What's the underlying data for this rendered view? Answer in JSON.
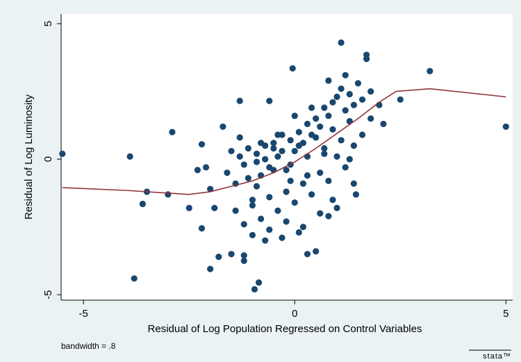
{
  "chart_data": {
    "type": "scatter",
    "ylabel": "Residual of Log Luminosity",
    "xlabel": "Residual of Log Population Regressed on Control Variables",
    "note": "bandwidth = .8",
    "logo": "stata™",
    "xlim": [
      -5.53,
      5.16
    ],
    "ylim": [
      -5.2,
      5.36
    ],
    "xticks": [
      -5,
      0,
      5
    ],
    "yticks": [
      -5,
      0,
      5
    ],
    "points": {
      "color": "#1a476f",
      "x": [
        -5.5,
        -3.9,
        -3.8,
        -3.5,
        -3.6,
        -3.0,
        -2.9,
        -2.5,
        -2.2,
        -2.2,
        -2.0,
        -1.8,
        -1.5,
        -1.7,
        -1.3,
        -0.95,
        -0.85,
        3.2,
        5.0,
        1.1,
        1.7,
        2.5,
        -0.6,
        -0.05,
        1.45,
        0.8,
        0.3,
        -1.2,
        -1.2,
        -2.3,
        -2.1,
        -2.0,
        -1.9,
        -1.6,
        -1.5,
        -1.4,
        -1.3,
        -1.2,
        -1.1,
        -1.0,
        -0.9,
        -0.8,
        -0.7,
        -0.6,
        -0.5,
        -0.4,
        -0.3,
        -0.2,
        -0.1,
        0.0,
        0.1,
        0.2,
        0.3,
        0.4,
        0.5,
        0.6,
        0.7,
        0.8,
        0.9,
        1.0,
        1.1,
        1.2,
        1.3,
        1.4,
        1.5,
        1.6,
        1.8,
        2.0,
        -1.4,
        -1.2,
        -1.0,
        -0.8,
        -0.6,
        -0.4,
        -0.2,
        0.0,
        0.2,
        0.4,
        0.6,
        0.8,
        1.0,
        1.2,
        1.4,
        1.6,
        -1.1,
        -0.9,
        -0.7,
        -0.5,
        -0.3,
        -0.1,
        0.1,
        0.3,
        0.5,
        0.7,
        0.9,
        1.1,
        1.3,
        -1.0,
        -0.6,
        -0.2,
        0.2,
        0.6,
        1.0,
        1.4,
        1.8,
        -0.8,
        -0.4,
        0.0,
        0.4,
        0.8,
        1.2,
        -1.3,
        -0.9,
        -0.5,
        -0.1,
        0.3,
        0.7,
        -0.7,
        -0.3,
        0.1,
        0.5,
        0.9,
        1.3,
        1.7,
        2.1
      ],
      "y": [
        0.2,
        0.1,
        -4.4,
        -1.2,
        -1.65,
        -1.3,
        1.0,
        -1.8,
        -2.55,
        0.55,
        -4.05,
        -3.6,
        -3.5,
        1.2,
        2.15,
        -4.8,
        -4.55,
        3.25,
        1.2,
        4.3,
        3.85,
        2.2,
        2.15,
        3.35,
        -1.3,
        -2.1,
        -3.5,
        -3.75,
        -3.55,
        -0.4,
        -0.3,
        -1.1,
        -1.8,
        -0.5,
        0.3,
        -0.9,
        0.8,
        -0.2,
        0.4,
        -1.5,
        0.2,
        -0.6,
        0.5,
        -0.3,
        0.6,
        0.1,
        0.9,
        -0.4,
        0.7,
        0.3,
        1.0,
        0.6,
        1.3,
        0.9,
        1.5,
        1.2,
        1.9,
        1.6,
        2.1,
        2.3,
        2.6,
        1.8,
        2.4,
        2.0,
        2.8,
        2.2,
        2.5,
        2.0,
        -1.9,
        -2.4,
        -1.7,
        -2.2,
        -1.4,
        -1.9,
        -1.2,
        -1.6,
        -0.9,
        -1.3,
        -0.5,
        -0.8,
        0.1,
        -0.3,
        0.5,
        0.9,
        -0.7,
        -1.0,
        0.0,
        -0.4,
        0.3,
        -0.2,
        0.5,
        0.1,
        0.8,
        0.4,
        1.1,
        0.7,
        1.4,
        -2.8,
        -2.6,
        -2.3,
        -2.5,
        -2.0,
        -1.8,
        -0.9,
        1.5,
        0.6,
        0.9,
        1.6,
        1.9,
        2.9,
        3.1,
        0.1,
        -0.1,
        0.4,
        -0.8,
        -0.6,
        0.2,
        -3.0,
        -2.9,
        -2.7,
        -3.4,
        -1.5,
        0.0,
        3.7,
        1.3
      ]
    },
    "lowess": {
      "color": "#90353b",
      "x": [
        -5.5,
        -4.0,
        -3.0,
        -2.5,
        -2.0,
        -1.5,
        -1.0,
        -0.5,
        0.0,
        0.5,
        1.0,
        1.5,
        2.0,
        2.4,
        3.2,
        5.0
      ],
      "y": [
        -1.05,
        -1.15,
        -1.25,
        -1.3,
        -1.2,
        -1.0,
        -0.8,
        -0.5,
        -0.1,
        0.4,
        0.95,
        1.5,
        2.1,
        2.5,
        2.6,
        2.3
      ]
    }
  }
}
